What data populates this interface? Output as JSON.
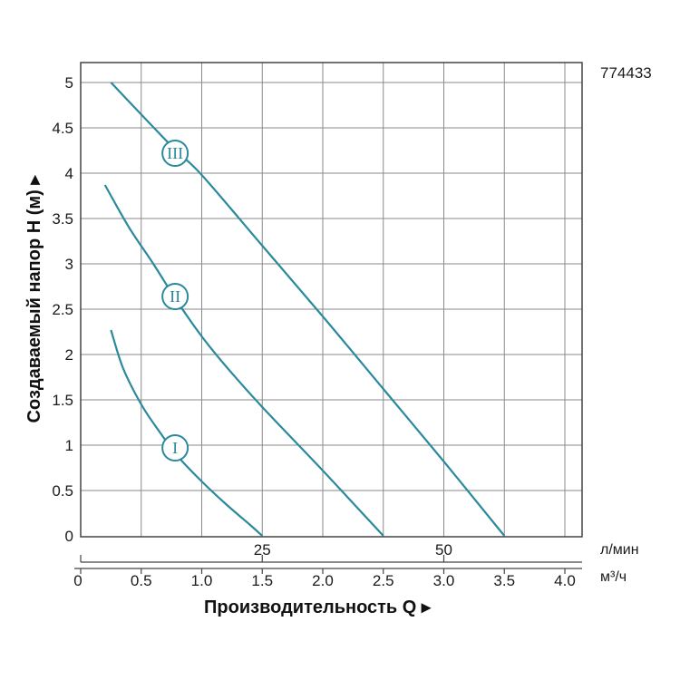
{
  "chart_data": {
    "type": "line",
    "article_code": "774433",
    "ylabel": "Создаваемый напор H (м) ▸",
    "xlabel": "Производительность Q ▸",
    "y_ticks": [
      "0",
      "0.5",
      "1",
      "1.5",
      "2",
      "2.5",
      "3",
      "3.5",
      "4",
      "4.5",
      "5"
    ],
    "x_ticks_m3h": [
      "0",
      "0.5",
      "1.0",
      "1.5",
      "2.0",
      "2.5",
      "3.0",
      "3.5",
      "4.0"
    ],
    "x_ticks_lmin": [
      "25",
      "50"
    ],
    "unit_lmin": "л/мин",
    "unit_m3h": "м³/ч",
    "xlim": [
      0,
      4.2
    ],
    "ylim": [
      0,
      5.2
    ],
    "grid": true,
    "line_color": "#2a8a9c",
    "series": [
      {
        "name": "I",
        "label_at": [
          0.78,
          0.97
        ],
        "x": [
          0.25,
          0.35,
          0.5,
          0.65,
          0.8,
          1.0,
          1.2,
          1.4,
          1.5
        ],
        "y": [
          2.27,
          1.85,
          1.45,
          1.15,
          0.88,
          0.6,
          0.35,
          0.12,
          0.0
        ]
      },
      {
        "name": "II",
        "label_at": [
          0.78,
          2.64
        ],
        "x": [
          0.2,
          0.4,
          0.6,
          0.8,
          1.0,
          1.2,
          1.5,
          2.0,
          2.5
        ],
        "y": [
          3.87,
          3.4,
          3.0,
          2.58,
          2.2,
          1.87,
          1.42,
          0.72,
          0.0
        ]
      },
      {
        "name": "III",
        "label_at": [
          0.78,
          4.22
        ],
        "x": [
          0.25,
          0.75,
          1.0,
          1.5,
          2.0,
          2.5,
          3.0,
          3.5
        ],
        "y": [
          5.0,
          4.3,
          3.98,
          3.2,
          2.42,
          1.62,
          0.82,
          0.0
        ]
      }
    ]
  }
}
